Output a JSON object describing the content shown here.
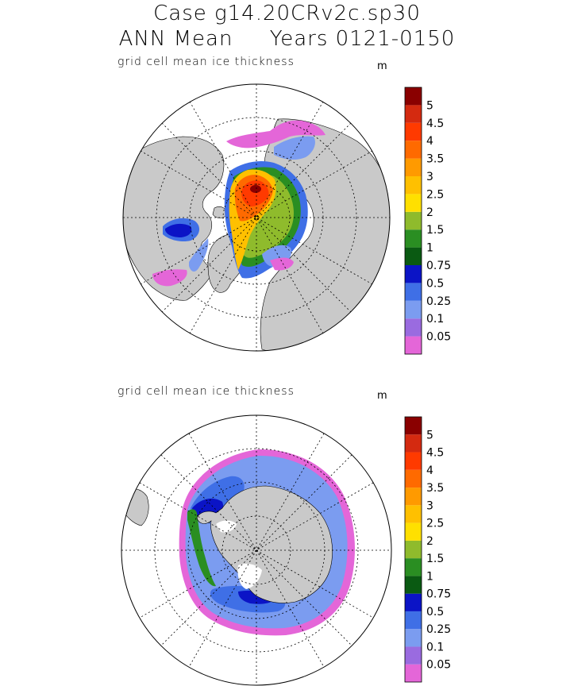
{
  "header": {
    "line1": "Case g14.20CRv2c.sp30",
    "line2": "ANN Mean     Years 0121-0150"
  },
  "colors": {
    "land": "#c9c9c9",
    "bins": [
      "#e466d8",
      "#9a6be0",
      "#7b9cf0",
      "#3f6fe6",
      "#0b14c6",
      "#0a5a12",
      "#2a8e22",
      "#8fbb2c",
      "#ffe000",
      "#ffc000",
      "#ff9a00",
      "#ff6a00",
      "#ff3a00",
      "#d42a10",
      "#8a0000"
    ]
  },
  "panels": [
    {
      "name": "arctic",
      "subtitle": "grid cell mean ice thickness",
      "units": "m",
      "colorbar_labels": [
        "5",
        "4.5",
        "4",
        "3.5",
        "3",
        "2.5",
        "2",
        "1.5",
        "1",
        "0.75",
        "0.5",
        "0.25",
        "0.1",
        "0.05"
      ]
    },
    {
      "name": "antarctic",
      "subtitle": "grid cell mean ice thickness",
      "units": "m",
      "colorbar_labels": [
        "5",
        "4.5",
        "4",
        "3.5",
        "3",
        "2.5",
        "2",
        "1.5",
        "1",
        "0.75",
        "0.5",
        "0.25",
        "0.1",
        "0.05"
      ]
    }
  ]
}
